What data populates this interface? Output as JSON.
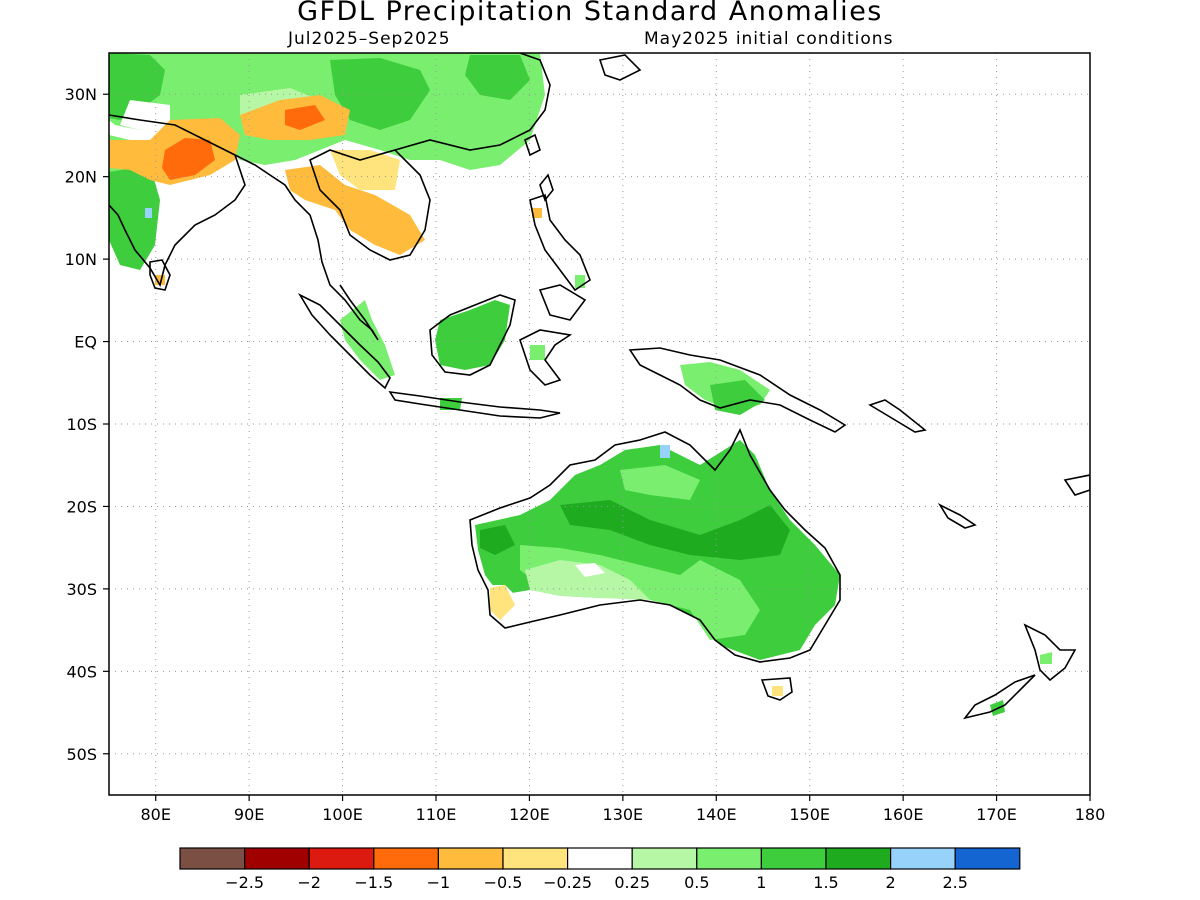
{
  "title": "GFDL Precipitation Standard Anomalies",
  "subtitle_left": "Jul2025–Sep2025",
  "subtitle_right": "May2025 initial conditions",
  "map": {
    "lon_range": [
      75,
      180
    ],
    "lat_range": [
      -55,
      35
    ],
    "grid": "dotted",
    "y_ticks": [
      {
        "lat": 30,
        "label": "30N"
      },
      {
        "lat": 20,
        "label": "20N"
      },
      {
        "lat": 10,
        "label": "10N"
      },
      {
        "lat": 0,
        "label": "EQ"
      },
      {
        "lat": -10,
        "label": "10S"
      },
      {
        "lat": -20,
        "label": "20S"
      },
      {
        "lat": -30,
        "label": "30S"
      },
      {
        "lat": -40,
        "label": "40S"
      },
      {
        "lat": -50,
        "label": "50S"
      }
    ],
    "x_ticks": [
      {
        "lon": 80,
        "label": "80E"
      },
      {
        "lon": 90,
        "label": "90E"
      },
      {
        "lon": 100,
        "label": "100E"
      },
      {
        "lon": 110,
        "label": "110E"
      },
      {
        "lon": 120,
        "label": "120E"
      },
      {
        "lon": 130,
        "label": "130E"
      },
      {
        "lon": 140,
        "label": "140E"
      },
      {
        "lon": 150,
        "label": "150E"
      },
      {
        "lon": 160,
        "label": "160E"
      },
      {
        "lon": 170,
        "label": "170E"
      },
      {
        "lon": 180,
        "label": "180"
      }
    ]
  },
  "colorbar": {
    "colors": [
      "#7b4f44",
      "#a00000",
      "#dd1a0f",
      "#ff6a0a",
      "#ffbb3c",
      "#ffe37d",
      "#ffffff",
      "#b5f7a5",
      "#7aee6e",
      "#3dcd3d",
      "#1fab1f",
      "#96d2fa",
      "#1464d2"
    ],
    "labels": [
      "−2.5",
      "−2",
      "−1.5",
      "−1",
      "−0.5",
      "−0.25",
      "0.25",
      "0.5",
      "1",
      "1.5",
      "2",
      "2.5"
    ]
  }
}
